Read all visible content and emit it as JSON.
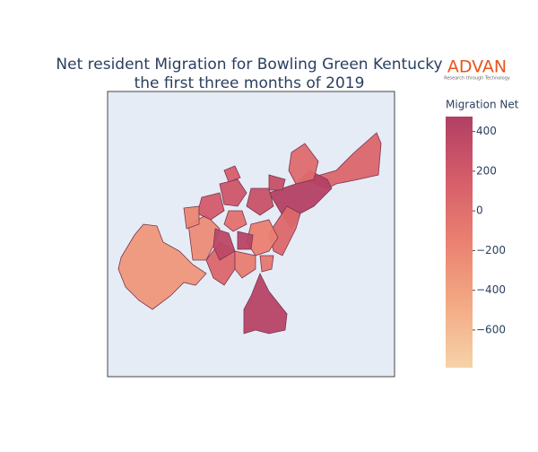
{
  "chart_data": {
    "type": "choropleth",
    "title": "Net resident Migration for Bowling Green Kentucky",
    "subtitle": "the first three months of 2019",
    "logo": {
      "name": "ADVAN",
      "tagline": "Research through Technology"
    },
    "colorbar_title": "Migration Net",
    "colorscale": [
      "#f6d2a9",
      "#f3aa84",
      "#ea8171",
      "#d55d6a",
      "#b13f64"
    ],
    "clim": [
      -790,
      475
    ],
    "cticks": [
      {
        "value": 400,
        "label": "400"
      },
      {
        "value": 200,
        "label": "200"
      },
      {
        "value": 0,
        "label": "0"
      },
      {
        "value": -200,
        "label": "−200"
      },
      {
        "value": -400,
        "label": "−400"
      },
      {
        "value": -600,
        "label": "−600"
      }
    ],
    "values": [
      -330,
      420,
      80,
      450,
      60,
      30,
      -240,
      70,
      -120,
      380,
      -150,
      230,
      270,
      -20,
      180,
      -80,
      150,
      300,
      420,
      -200
    ]
  }
}
